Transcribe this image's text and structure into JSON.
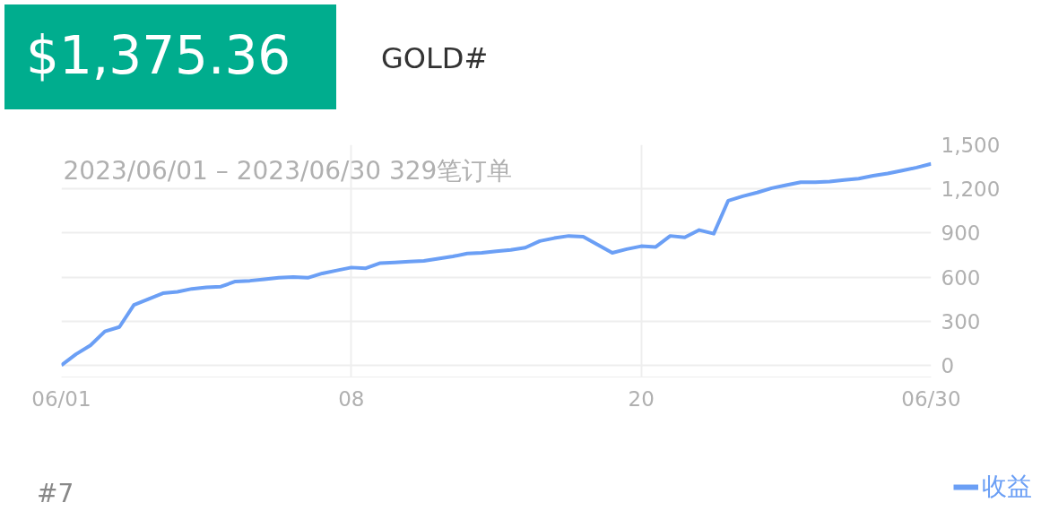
{
  "chart_data": {
    "type": "line",
    "title": "$1,375.36",
    "subtitle": "GOLD#",
    "annotations": [
      "2023/06/01 – 2023/06/30  329笔订单",
      "#7"
    ],
    "categories": [
      "06/01",
      null,
      null,
      null,
      null,
      null,
      null,
      null,
      null,
      null,
      null,
      null,
      null,
      null,
      null,
      null,
      null,
      null,
      null,
      null,
      "08",
      null,
      null,
      null,
      null,
      null,
      null,
      null,
      null,
      null,
      null,
      null,
      null,
      null,
      null,
      null,
      null,
      null,
      null,
      null,
      "20",
      null,
      null,
      null,
      null,
      null,
      null,
      null,
      null,
      null,
      null,
      null,
      null,
      null,
      null,
      null,
      null,
      null,
      null,
      null,
      "06/30"
    ],
    "series": [
      {
        "name": "收益",
        "color": "#6b9ff5",
        "values": [
          0,
          75,
          135,
          230,
          260,
          410,
          450,
          490,
          500,
          520,
          530,
          535,
          570,
          575,
          585,
          595,
          600,
          595,
          625,
          645,
          665,
          660,
          695,
          700,
          705,
          710,
          725,
          740,
          760,
          765,
          775,
          785,
          800,
          845,
          865,
          880,
          875,
          820,
          765,
          790,
          810,
          805,
          880,
          870,
          920,
          895,
          1120,
          1150,
          1175,
          1205,
          1225,
          1245,
          1245,
          1250,
          1260,
          1270,
          1290,
          1305,
          1325,
          1345,
          1370
        ]
      }
    ],
    "ylim": [
      -80,
      1500
    ],
    "yticks": [
      0,
      300,
      600,
      900,
      {
        "value": 1200,
        "label": "1,200"
      },
      {
        "value": 1500,
        "label": "1,500"
      }
    ],
    "grid": true,
    "legend": "bottom right",
    "marker": "none",
    "line_style": "solid"
  }
}
